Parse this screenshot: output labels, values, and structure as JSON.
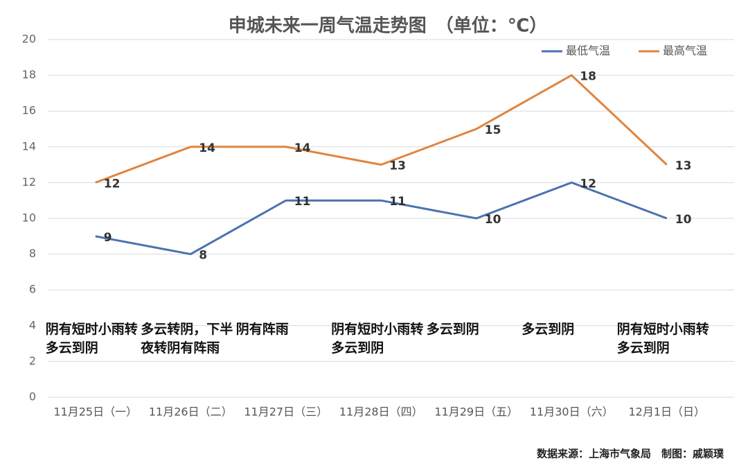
{
  "chart_data": {
    "type": "line",
    "title": "申城未来一周气温走势图　（单位：℃）",
    "categories": [
      "11月25日（一）",
      "11月26日（二）",
      "11月27日（三）",
      "11月28日（四）",
      "11月29日（五）",
      "11月30日（六）",
      "12月1日（日）"
    ],
    "series": [
      {
        "name": "最低气温",
        "color": "#4a72b0",
        "values": [
          9,
          8,
          11,
          11,
          10,
          12,
          10
        ]
      },
      {
        "name": "最高气温",
        "color": "#e0843e",
        "values": [
          12,
          14,
          14,
          13,
          15,
          18,
          13
        ]
      }
    ],
    "annotations": [
      "阴有短时小雨转多云到阴",
      "多云转阴，下半夜转阴有阵雨",
      "阴有阵雨",
      "阴有短时小雨转多云到阴",
      "多云到阴",
      "多云到阴",
      "阴有短时小雨转多云到阴"
    ],
    "ylim": [
      0,
      20
    ],
    "yticks": [
      0,
      2,
      4,
      6,
      8,
      10,
      12,
      14,
      16,
      18,
      20
    ],
    "grid": true,
    "legend": "top-right",
    "source": "数据来源：上海市气象局　制图：戚颖璞"
  }
}
